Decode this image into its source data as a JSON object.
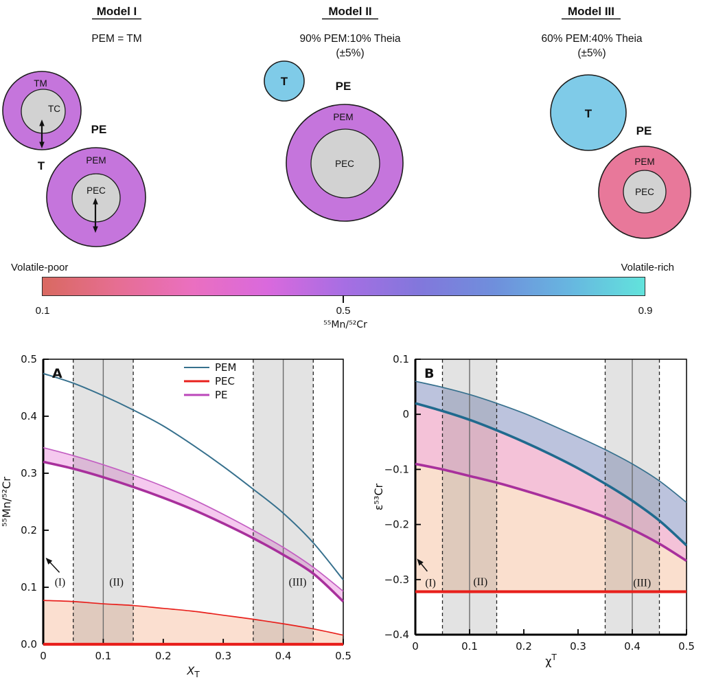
{
  "models": [
    {
      "title": "Model I",
      "subtitle": "PEM = TM",
      "subtitle2": "",
      "t_label": "T",
      "pe_label": "PE",
      "theia": {
        "mantle_label": "TM",
        "core_label": "TC"
      },
      "pe": {
        "mantle_label": "PEM",
        "core_label": "PEC"
      },
      "mantle_color": "#c575dc",
      "core_color": "#d2d2d2"
    },
    {
      "title": "Model II",
      "subtitle": "90% PEM:10% Theia",
      "subtitle2": "(±5%)",
      "t_label": "T",
      "pe_label": "PE",
      "pe": {
        "mantle_label": "PEM",
        "core_label": "PEC"
      },
      "theia_color": "#7fcbe8",
      "mantle_color": "#c575dc",
      "core_color": "#d2d2d2"
    },
    {
      "title": "Model III",
      "subtitle": "60% PEM:40% Theia",
      "subtitle2": "(±5%)",
      "t_label": "T",
      "pe_label": "PE",
      "pe": {
        "mantle_label": "PEM",
        "core_label": "PEC"
      },
      "theia_color": "#7fcbe8",
      "mantle_color": "#e8789a",
      "core_color": "#d2d2d2"
    }
  ],
  "colorbar": {
    "left_label": "Volatile-poor",
    "right_label": "Volatile-rich",
    "ticks": [
      "0.1",
      "0.5",
      "0.9"
    ],
    "axis_label": "⁵⁵Mn/⁵²Cr",
    "gradient": [
      "#d96961",
      "#e66e93",
      "#ea6fc0",
      "#d969dd",
      "#a76ee3",
      "#8277dc",
      "#6f8fdc",
      "#67b6e0",
      "#62e3dc"
    ]
  },
  "chart_data": [
    {
      "type": "line",
      "panel_label": "A",
      "xlabel": {
        "text": "X",
        "sub": "T",
        "italic": true
      },
      "ylabel": "⁵⁵Mn/⁵²Cr",
      "xlim": [
        0,
        0.5
      ],
      "ylim": [
        0,
        0.5
      ],
      "xticks": [
        0,
        0.1,
        0.2,
        0.3,
        0.4,
        0.5
      ],
      "xtick_labels": [
        "0",
        "0.1",
        "0.2",
        "0.3",
        "0.4",
        "0.5"
      ],
      "yticks": [
        0,
        0.1,
        0.2,
        0.3,
        0.4,
        0.5
      ],
      "ytick_labels": [
        "0.0",
        "0.1",
        "0.2",
        "0.3",
        "0.4",
        "0.5"
      ],
      "x": [
        0,
        0.05,
        0.1,
        0.15,
        0.2,
        0.25,
        0.3,
        0.35,
        0.4,
        0.45,
        0.5
      ],
      "series": [
        {
          "name": "PEC_upper",
          "color": "#e8201c",
          "width": 1.7,
          "values": [
            0.077,
            0.075,
            0.071,
            0.068,
            0.063,
            0.058,
            0.051,
            0.044,
            0.036,
            0.027,
            0.016
          ]
        },
        {
          "name": "PEC",
          "color": "#e8201c",
          "width": 4.2,
          "values": [
            0,
            0,
            0,
            0,
            0,
            0,
            0,
            0,
            0,
            0,
            0
          ]
        },
        {
          "name": "PE_upper",
          "color": "#c35ec2",
          "width": 1.7,
          "values": [
            0.345,
            0.331,
            0.315,
            0.297,
            0.277,
            0.254,
            0.228,
            0.2,
            0.17,
            0.135,
            0.093
          ]
        },
        {
          "name": "PE",
          "color": "#a8309c",
          "width": 3.6,
          "values": [
            0.32,
            0.308,
            0.293,
            0.276,
            0.257,
            0.236,
            0.212,
            0.186,
            0.157,
            0.124,
            0.075
          ]
        },
        {
          "name": "PEM",
          "color": "#36708d",
          "width": 2,
          "values": [
            0.475,
            0.458,
            0.436,
            0.411,
            0.383,
            0.349,
            0.312,
            0.272,
            0.23,
            0.178,
            0.113
          ]
        }
      ],
      "fills": [
        {
          "between": [
            "PEC_upper",
            "PEC"
          ],
          "color": "#fbdfd0"
        },
        {
          "between": [
            "PE_upper",
            "PE"
          ],
          "color": "#f5c9ef"
        }
      ],
      "bands": [
        {
          "x0": 0.05,
          "x1": 0.15,
          "center": 0.1
        },
        {
          "x0": 0.35,
          "x1": 0.45,
          "center": 0.4
        }
      ],
      "band_fill": "rgba(128,128,128,0.22)",
      "annotations": [
        {
          "text": "(I)",
          "x": 0.028,
          "y": 0.103,
          "arrow": {
            "tail": [
              0.027,
              0.126
            ],
            "tip": [
              0.004,
              0.152
            ]
          }
        },
        {
          "text": "(II)",
          "x": 0.122,
          "y": 0.103
        },
        {
          "text": "(III)",
          "x": 0.424,
          "y": 0.103
        }
      ],
      "legend": {
        "position": "top-center",
        "items": [
          {
            "label": "PEM",
            "color": "#36708d",
            "width": 2
          },
          {
            "label": "PEC",
            "color": "#e8201c",
            "width": 3
          },
          {
            "label": "PE",
            "color": "#bb46ba",
            "width": 3
          }
        ]
      }
    },
    {
      "type": "line",
      "panel_label": "B",
      "xlabel": {
        "text": "χ",
        "sup": "T"
      },
      "ylabel": "ε⁵³Cr",
      "xlim": [
        0,
        0.5
      ],
      "ylim": [
        -0.4,
        0.1
      ],
      "xticks": [
        0,
        0.1,
        0.2,
        0.3,
        0.4,
        0.5
      ],
      "xtick_labels": [
        "0",
        "0.1",
        "0.2",
        "0.3",
        "0.4",
        "0.5"
      ],
      "yticks": [
        0.1,
        0,
        -0.1,
        -0.2,
        -0.3,
        -0.4
      ],
      "ytick_labels": [
        "0.1",
        "0",
        "−0.1",
        "−0.2",
        "−0.3",
        "−0.4"
      ],
      "x": [
        0,
        0.05,
        0.1,
        0.15,
        0.2,
        0.25,
        0.3,
        0.35,
        0.4,
        0.45,
        0.5
      ],
      "series": [
        {
          "name": "PEC",
          "color": "#e8201c",
          "width": 4.2,
          "values": [
            -0.322,
            -0.322,
            -0.322,
            -0.322,
            -0.322,
            -0.322,
            -0.322,
            -0.322,
            -0.322,
            -0.322,
            -0.322
          ]
        },
        {
          "name": "PE",
          "color": "#a8309c",
          "width": 3.6,
          "values": [
            -0.09,
            -0.1,
            -0.112,
            -0.124,
            -0.138,
            -0.153,
            -0.169,
            -0.187,
            -0.209,
            -0.235,
            -0.266
          ]
        },
        {
          "name": "PEM_upper",
          "color": "#36708d",
          "width": 1.7,
          "values": [
            0.06,
            0.049,
            0.036,
            0.02,
            0.002,
            -0.019,
            -0.041,
            -0.064,
            -0.09,
            -0.121,
            -0.16
          ]
        },
        {
          "name": "PEM",
          "color": "#1f6a8e",
          "width": 3.6,
          "values": [
            0.02,
            0.006,
            -0.01,
            -0.029,
            -0.05,
            -0.073,
            -0.098,
            -0.126,
            -0.157,
            -0.193,
            -0.238
          ]
        }
      ],
      "fills": [
        {
          "between": [
            "PE",
            "PEC"
          ],
          "color": "#fadfce"
        },
        {
          "between": [
            "PEM",
            "PE"
          ],
          "color": "#f4c2d8"
        },
        {
          "between": [
            "PEM_upper",
            "PEM"
          ],
          "color": "#bcc3dd"
        }
      ],
      "bands": [
        {
          "x0": 0.05,
          "x1": 0.15,
          "center": 0.1
        },
        {
          "x0": 0.35,
          "x1": 0.45,
          "center": 0.4
        }
      ],
      "band_fill": "rgba(128,128,128,0.22)",
      "annotations": [
        {
          "text": "(I)",
          "x": 0.028,
          "y": -0.312,
          "arrow": {
            "tail": [
              0.022,
              -0.285
            ],
            "tip": [
              0.003,
              -0.262
            ]
          }
        },
        {
          "text": "(II)",
          "x": 0.12,
          "y": -0.31
        },
        {
          "text": "(III)",
          "x": 0.418,
          "y": -0.312
        }
      ]
    }
  ]
}
